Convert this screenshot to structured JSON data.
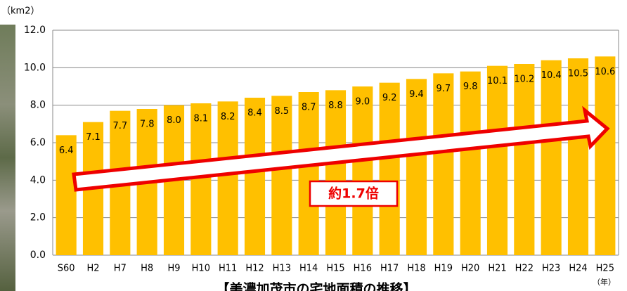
{
  "chart_data": {
    "type": "bar",
    "y_unit": "（km2）",
    "x_unit": "（年）",
    "title": "【美濃加茂市の宅地面積の推移】",
    "annotation": "約1.7倍",
    "categories": [
      "S60",
      "H2",
      "H7",
      "H8",
      "H9",
      "H10",
      "H11",
      "H12",
      "H13",
      "H14",
      "H15",
      "H16",
      "H17",
      "H18",
      "H19",
      "H20",
      "H21",
      "H22",
      "H23",
      "H24",
      "H25"
    ],
    "values": [
      6.4,
      7.1,
      7.7,
      7.8,
      8.0,
      8.1,
      8.2,
      8.4,
      8.5,
      8.7,
      8.8,
      9.0,
      9.2,
      9.4,
      9.7,
      9.8,
      10.1,
      10.2,
      10.4,
      10.5,
      10.6
    ],
    "value_labels": [
      "6.4",
      "7.1",
      "7.7",
      "7.8",
      "8.0",
      "8.1",
      "8.2",
      "8.4",
      "8.5",
      "8.7",
      "8.8",
      "9.0",
      "9.2",
      "9.4",
      "9.7",
      "9.8",
      "10.1",
      "10.2",
      "10.4",
      "10.5",
      "10.6"
    ],
    "color": "#ffc000",
    "ylim": [
      0,
      12
    ],
    "yticks": [
      {
        "value": 0,
        "label": "0.0"
      },
      {
        "value": 2,
        "label": "2.0"
      },
      {
        "value": 4,
        "label": "4.0"
      },
      {
        "value": 6,
        "label": "6.0"
      },
      {
        "value": 8,
        "label": "8.0"
      },
      {
        "value": 10,
        "label": "10.0"
      },
      {
        "value": 12,
        "label": "12.0"
      }
    ],
    "grid": true
  }
}
